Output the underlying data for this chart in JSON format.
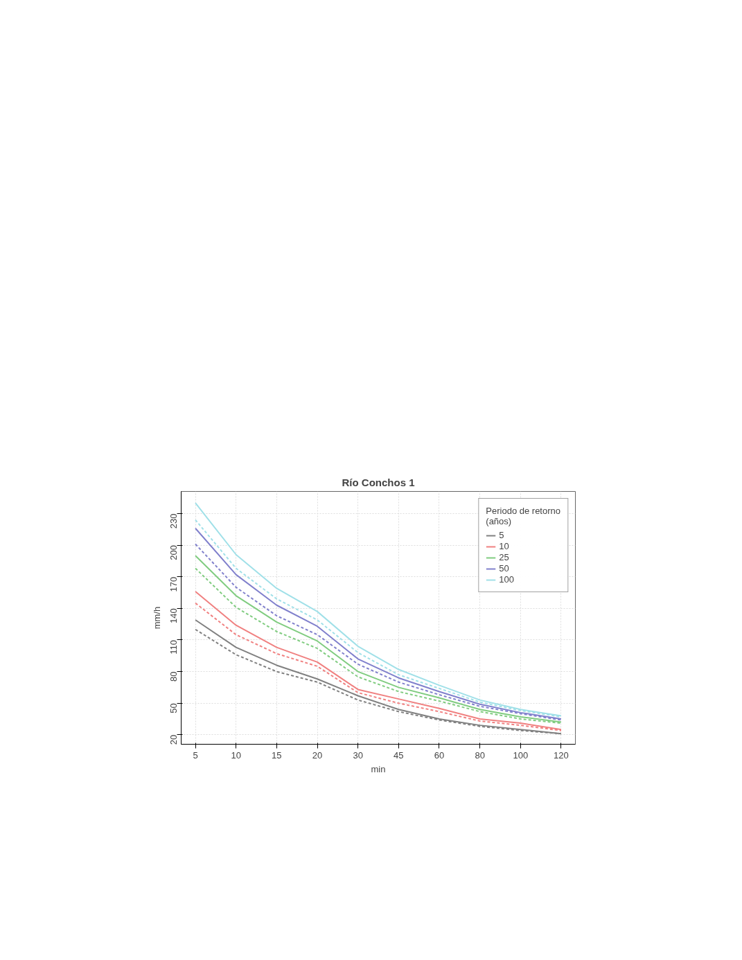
{
  "chart_data": {
    "type": "line",
    "title": "Río Conchos 1",
    "xlabel": "min",
    "ylabel": "mm/h",
    "legend_title": "Periodo de retorno\n(años)",
    "legend": "top right",
    "grid": true,
    "line_style": "solid",
    "marker": "none",
    "categories": [
      "5",
      "10",
      "15",
      "20",
      "30",
      "45",
      "60",
      "80",
      "100",
      "120"
    ],
    "ylim": [
      11,
      251
    ],
    "yticks": [
      20,
      50,
      80,
      110,
      140,
      170,
      200,
      230
    ],
    "series": [
      {
        "name": "5",
        "color": "#808080",
        "values": [
          129,
          103,
          86,
          73,
          57,
          44,
          35,
          29,
          25,
          21
        ]
      },
      {
        "name": "10",
        "color": "#f08080",
        "values": [
          156,
          124,
          103,
          89,
          63,
          54,
          45,
          35,
          31,
          25
        ]
      },
      {
        "name": "25",
        "color": "#80cc80",
        "values": [
          190,
          152,
          127,
          109,
          80,
          65,
          55,
          44,
          37,
          32
        ]
      },
      {
        "name": "50",
        "color": "#8080cc",
        "values": [
          216,
          172,
          143,
          123,
          92,
          74,
          61,
          49,
          41,
          35
        ]
      },
      {
        "name": "100",
        "color": "#a0e0e8",
        "values": [
          240,
          191,
          159,
          137,
          104,
          82,
          67,
          53,
          44,
          38
        ]
      },
      {
        "color": "#808080",
        "line_style": "dashed",
        "values": [
          120,
          96,
          80,
          70,
          53,
          42,
          34,
          28,
          24,
          21
        ]
      },
      {
        "color": "#f08080",
        "line_style": "dashed",
        "values": [
          145,
          115,
          97,
          85,
          60,
          50,
          42,
          33,
          29,
          24
        ]
      },
      {
        "color": "#80cc80",
        "line_style": "dashed",
        "values": [
          178,
          141,
          118,
          102,
          75,
          61,
          52,
          42,
          35,
          31
        ]
      },
      {
        "color": "#8080cc",
        "line_style": "dashed",
        "values": [
          201,
          160,
          133,
          115,
          87,
          70,
          58,
          47,
          40,
          34
        ]
      },
      {
        "color": "#a0e0e8",
        "line_style": "dashed",
        "values": [
          224,
          178,
          149,
          129,
          98,
          77,
          64,
          51,
          43,
          37
        ]
      }
    ]
  }
}
